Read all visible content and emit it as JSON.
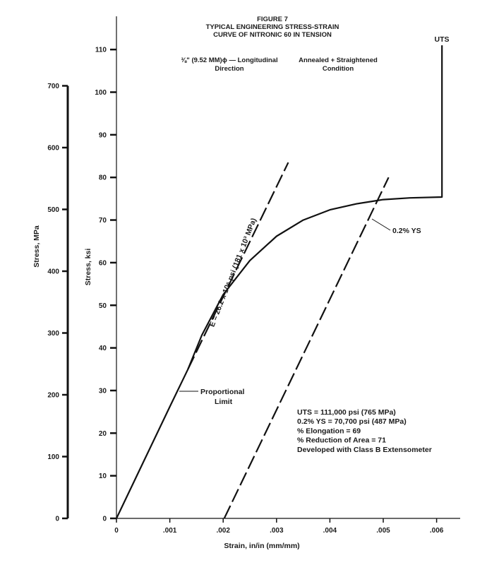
{
  "chart_data": {
    "type": "line",
    "title": [
      "FIGURE 7",
      "TYPICAL ENGINEERING STRESS-STRAIN",
      "CURVE OF NITRONIC 60 IN TENSION"
    ],
    "subtitle_left": [
      "⅜\" (9.52 MM)ϕ — Longitudinal",
      "Direction"
    ],
    "subtitle_right": [
      "Annealed + Straightened",
      "Condition"
    ],
    "xlabel": "Strain, in/in (mm/mm)",
    "ylabel": "Stress, ksi",
    "ylabel_secondary": "Stress, MPa",
    "xlim": [
      0,
      0.0065
    ],
    "ylim": [
      0,
      112
    ],
    "x_ticks": [
      {
        "value": 0,
        "label": "0"
      },
      {
        "value": 0.001,
        "label": ".001"
      },
      {
        "value": 0.002,
        "label": ".002"
      },
      {
        "value": 0.003,
        "label": ".003"
      },
      {
        "value": 0.004,
        "label": ".004"
      },
      {
        "value": 0.005,
        "label": ".005"
      },
      {
        "value": 0.006,
        "label": ".006"
      }
    ],
    "y_ticks_ksi": [
      0,
      10,
      20,
      30,
      40,
      50,
      60,
      70,
      80,
      90,
      100,
      110
    ],
    "y_ticks_mpa": [
      0,
      100,
      200,
      300,
      400,
      500,
      600,
      700
    ],
    "series": [
      {
        "style": "solid",
        "x": [
          0,
          0.0005,
          0.001,
          0.00134,
          0.0016,
          0.002,
          0.0025,
          0.003,
          0.0035,
          0.004,
          0.0045,
          0.0048,
          0.005,
          0.0055,
          0.0061,
          0.0061,
          0.0061
        ],
        "y": [
          0,
          13.1,
          26.2,
          35,
          43,
          52.5,
          60.5,
          66.2,
          70.0,
          72.4,
          73.8,
          74.4,
          74.8,
          75.2,
          75.4,
          75.4,
          111
        ]
      },
      {
        "style": "dashed",
        "x": [
          0.00134,
          0.00322
        ],
        "y": [
          35,
          83.5
        ]
      },
      {
        "style": "dashed",
        "x": [
          0.00202,
          0.0051
        ],
        "y": [
          0,
          80
        ]
      }
    ],
    "annotations": {
      "uts_label": "UTS",
      "ys_label": "0.2% YS",
      "modulus_label": "E = 26.2 x 10⁶ psi  (181 x 10³ MPa)",
      "proportional_limit": [
        "Proportional",
        "Limit"
      ],
      "properties": [
        "UTS = 111,000 psi (765 MPa)",
        "0.2% YS = 70,700 psi (487 MPa)",
        "% Elongation = 69",
        "% Reduction of Area = 71",
        "Developed with Class B Extensometer"
      ]
    }
  }
}
